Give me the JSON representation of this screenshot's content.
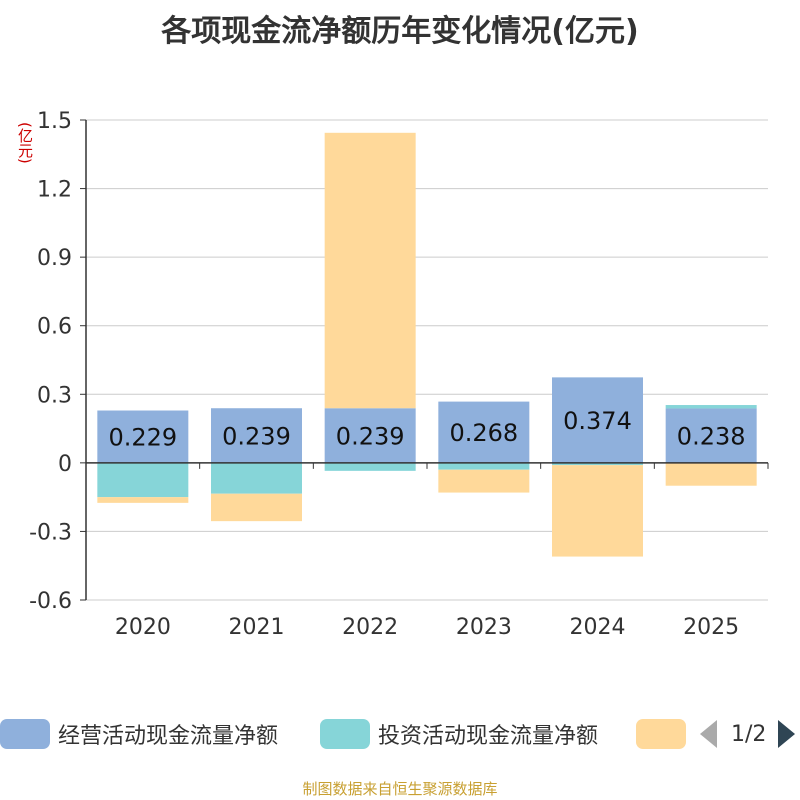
{
  "chart_data": {
    "type": "bar",
    "stacked": true,
    "title": "各项现金流净额历年变化情况(亿元)",
    "ylabel": "(亿元)",
    "categories": [
      "2020",
      "2021",
      "2022",
      "2023",
      "2024",
      "2025"
    ],
    "ylim": [
      -0.6,
      1.5
    ],
    "yticks": [
      1.5,
      1.2,
      0.9,
      0.6,
      0.3,
      0,
      -0.3,
      -0.6
    ],
    "ytick_labels": [
      "1.5",
      "1.2",
      "0.9",
      "0.6",
      "0.3",
      "0",
      "-0.3",
      "-0.6"
    ],
    "series": [
      {
        "name": "经营活动现金流量净额",
        "color": "#8fb0dc",
        "values": [
          0.229,
          0.239,
          0.239,
          0.268,
          0.374,
          0.238
        ],
        "labels": [
          "0.229",
          "0.239",
          "0.239",
          "0.268",
          "0.374",
          "0.238"
        ]
      },
      {
        "name": "投资活动现金流量净额",
        "color": "#86d5d8",
        "values": [
          -0.15,
          -0.135,
          -0.035,
          -0.03,
          -0.01,
          0.015
        ]
      },
      {
        "name": "",
        "color": "#ffd99a",
        "values": [
          -0.025,
          -0.12,
          1.205,
          -0.1,
          -0.4,
          -0.1
        ]
      }
    ],
    "legend": {
      "position": "bottom",
      "page": "1/2"
    },
    "grid": true
  },
  "source": "制图数据来自恒生聚源数据库"
}
